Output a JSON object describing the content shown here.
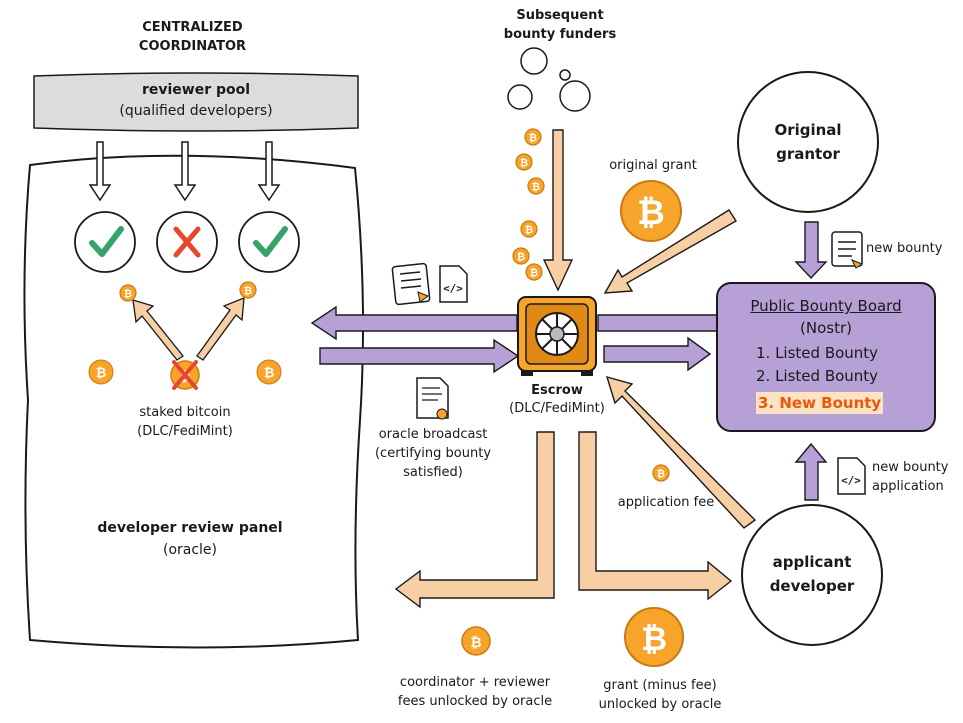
{
  "coordinator": {
    "title_line1": "CENTRALIZED",
    "title_line2": "COORDINATOR"
  },
  "reviewer_pool": {
    "title": "reviewer pool",
    "subtitle": "(qualified developers)"
  },
  "staked": {
    "line1": "staked bitcoin",
    "line2": "(DLC/FediMint)"
  },
  "panel": {
    "title": "developer review panel",
    "subtitle": "(oracle)"
  },
  "funders": {
    "line1": "Subsequent",
    "line2": "bounty funders"
  },
  "grant": {
    "label": "original grant"
  },
  "grantor": {
    "line1": "Original",
    "line2": "grantor"
  },
  "new_bounty": {
    "label": "new bounty"
  },
  "board": {
    "title": "Public Bounty Board",
    "subtitle": "(Nostr)",
    "items": [
      "1.  Listed Bounty",
      "2.  Listed Bounty",
      "3.  New Bounty"
    ]
  },
  "escrow": {
    "title": "Escrow",
    "subtitle": "(DLC/FediMint)"
  },
  "oracle_broadcast": {
    "line1": "oracle broadcast",
    "line2": "(certifying bounty",
    "line3": "satisfied)"
  },
  "application": {
    "line1": "new bounty",
    "line2": "application"
  },
  "fee": {
    "label": "application fee"
  },
  "applicant": {
    "line1": "applicant",
    "line2": "developer"
  },
  "coordinator_fees": {
    "line1": "coordinator + reviewer",
    "line2": "fees unlocked by oracle"
  },
  "grant_unlocked": {
    "line1": "grant (minus fee)",
    "line2": "unlocked by oracle"
  },
  "coin_symbol": "₿",
  "colors": {
    "purple": "#b7a0d6",
    "purple_dark": "#2b2438",
    "peach": "#f8cfa5",
    "orange": "#f7a42b",
    "orange_dark": "#d97a06",
    "gray_pool": "#dcdcdc",
    "check_green": "#36a36b",
    "cross_red": "#e8472c",
    "highlight": "#e8590c"
  }
}
